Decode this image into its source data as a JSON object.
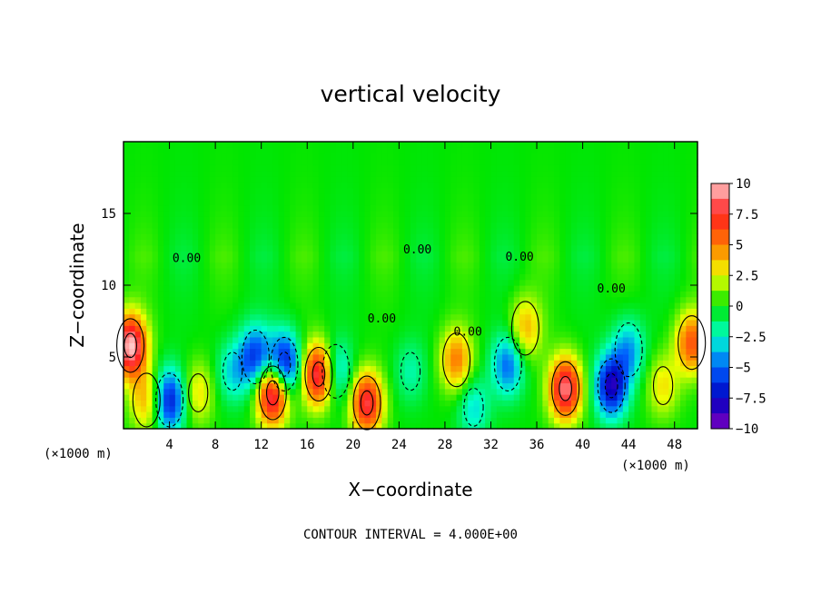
{
  "chart_data": {
    "type": "heatmap",
    "title": "vertical velocity",
    "xlabel": "X−coordinate",
    "ylabel": "Z−coordinate",
    "x_unit_label_left": "(×1000 m)",
    "x_unit_label_right": "(×1000 m)",
    "footer": "CONTOUR INTERVAL = 4.000E+00",
    "xlim": [
      0,
      50
    ],
    "ylim": [
      0,
      20
    ],
    "x_ticks": [
      4,
      8,
      12,
      16,
      20,
      24,
      28,
      32,
      36,
      40,
      44,
      48
    ],
    "y_ticks": [
      5,
      10,
      15
    ],
    "colorbar": {
      "range": [
        -10,
        10
      ],
      "ticks": [
        10,
        7.5,
        5,
        2.5,
        0,
        -2.5,
        -5,
        -7.5,
        -10
      ],
      "tick_labels": [
        "10",
        "7.5",
        "5",
        "2.5",
        "0",
        "−2.5",
        "−5",
        "−7.5",
        "−10"
      ],
      "colors": [
        "#ffc8c8",
        "#ff1e1e",
        "#ff7a00",
        "#f0ff00",
        "#00e600",
        "#00ffd0",
        "#0060ff",
        "#0000c0",
        "#8000c0"
      ]
    },
    "contour_labels": [
      "0.00",
      "0.00",
      "0.00",
      "0.00",
      "0.00",
      "0.00"
    ],
    "contour_interval": 4,
    "features": [
      {
        "x": 0.6,
        "z": 5.8,
        "w": 10
      },
      {
        "x": 2.0,
        "z": 2.0,
        "w": 4
      },
      {
        "x": 4.0,
        "z": 2.0,
        "w": -7
      },
      {
        "x": 6.5,
        "z": 2.5,
        "w": 3
      },
      {
        "x": 9.5,
        "z": 4.0,
        "w": -3
      },
      {
        "x": 11.5,
        "z": 5.0,
        "w": -6
      },
      {
        "x": 13.0,
        "z": 2.5,
        "w": 10
      },
      {
        "x": 14.0,
        "z": 4.5,
        "w": -8
      },
      {
        "x": 17.0,
        "z": 3.8,
        "w": 9
      },
      {
        "x": 18.5,
        "z": 4.0,
        "w": -4
      },
      {
        "x": 21.2,
        "z": 1.8,
        "w": 8
      },
      {
        "x": 25.0,
        "z": 4.0,
        "w": -2
      },
      {
        "x": 29.0,
        "z": 4.8,
        "w": 5
      },
      {
        "x": 30.5,
        "z": 1.5,
        "w": -3
      },
      {
        "x": 33.5,
        "z": 4.5,
        "w": -5
      },
      {
        "x": 35.0,
        "z": 7.0,
        "w": 4
      },
      {
        "x": 38.5,
        "z": 2.8,
        "w": 9
      },
      {
        "x": 42.5,
        "z": 3.0,
        "w": -8
      },
      {
        "x": 44.0,
        "z": 5.5,
        "w": -4
      },
      {
        "x": 47.0,
        "z": 3.0,
        "w": 3
      },
      {
        "x": 49.5,
        "z": 6.0,
        "w": 6
      }
    ]
  }
}
